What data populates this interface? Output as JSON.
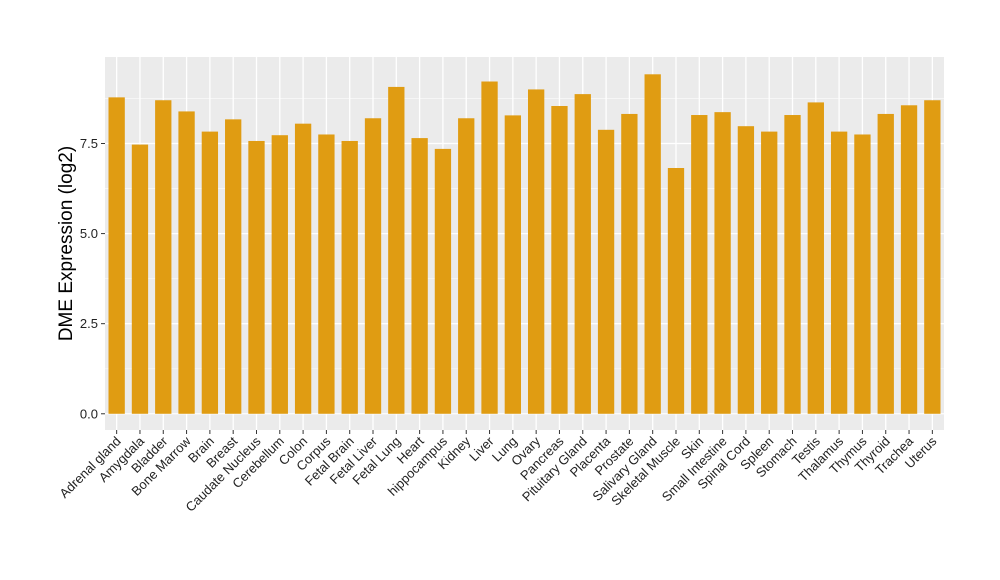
{
  "chart_data": {
    "type": "bar",
    "ylabel": "DME Expression (log2)",
    "xlabel": "",
    "ylim": [
      -0.45,
      9.9
    ],
    "yticks": [
      0.0,
      2.5,
      5.0,
      7.5
    ],
    "ytick_labels": [
      "0.0",
      "2.5",
      "5.0",
      "7.5"
    ],
    "grid": true,
    "bar_color": "#E09C12",
    "panel_color": "#EBEBEB",
    "categories": [
      "Adrenal gland",
      "Amygdala",
      "Bladder",
      "Bone Marrow",
      "Brain",
      "Breast",
      "Caudate Nucleus",
      "Cerebellum",
      "Colon",
      "Corpus",
      "Fetal Brain",
      "Fetal Liver",
      "Fetal Lung",
      "Heart",
      "hippocampus",
      "Kidney",
      "Liver",
      "Lung",
      "Ovary",
      "Pancreas",
      "Pituitary Gland",
      "Placenta",
      "Prostate",
      "Salivary Gland",
      "Skeletal Muscle",
      "Skin",
      "Small Intestine",
      "Spinal Cord",
      "Spleen",
      "Stomach",
      "Testis",
      "Thalamus",
      "Thymus",
      "Thyroid",
      "Trachea",
      "Uterus"
    ],
    "values": [
      8.78,
      7.47,
      8.7,
      8.39,
      7.83,
      8.17,
      7.57,
      7.73,
      8.05,
      7.75,
      7.57,
      8.2,
      9.07,
      7.65,
      7.35,
      8.2,
      9.22,
      8.28,
      9.0,
      8.54,
      8.87,
      7.88,
      8.32,
      9.42,
      6.82,
      8.29,
      8.37,
      7.98,
      7.83,
      8.29,
      8.64,
      7.83,
      7.75,
      8.32,
      8.56,
      8.7
    ]
  }
}
